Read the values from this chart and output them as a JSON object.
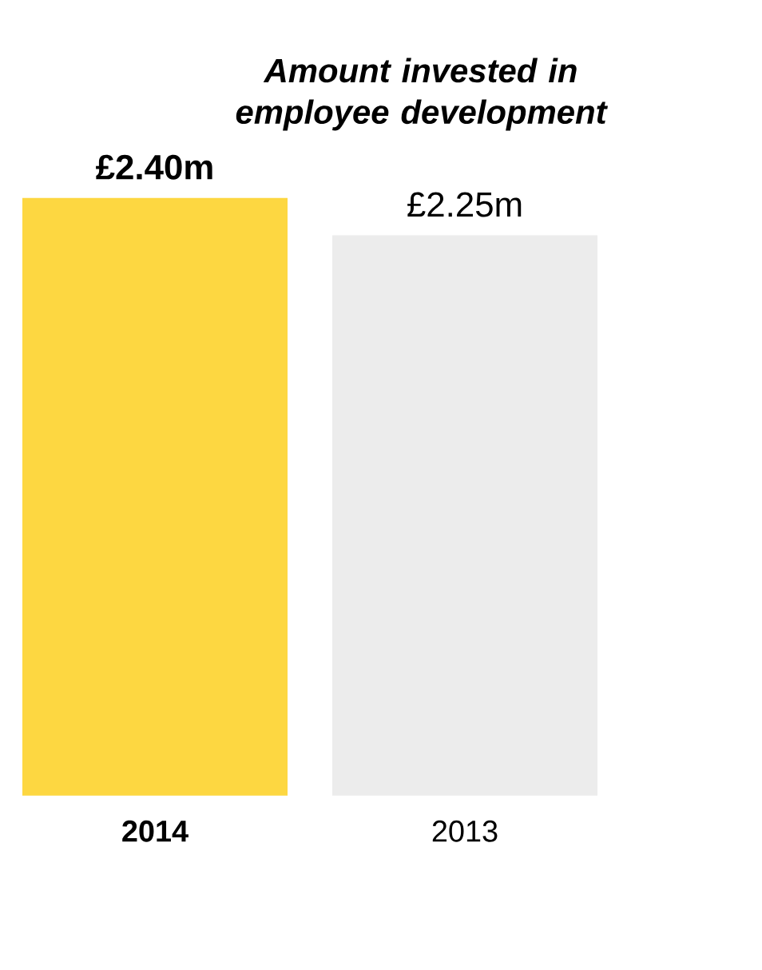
{
  "chart_data": {
    "type": "bar",
    "title": "Amount invested in employee development",
    "categories": [
      "2014",
      "2013"
    ],
    "values": [
      2.4,
      2.25
    ],
    "colors": [
      "#fdd741",
      "#ececec"
    ],
    "value_labels": [
      "£2.40m",
      "£2.25m"
    ]
  }
}
